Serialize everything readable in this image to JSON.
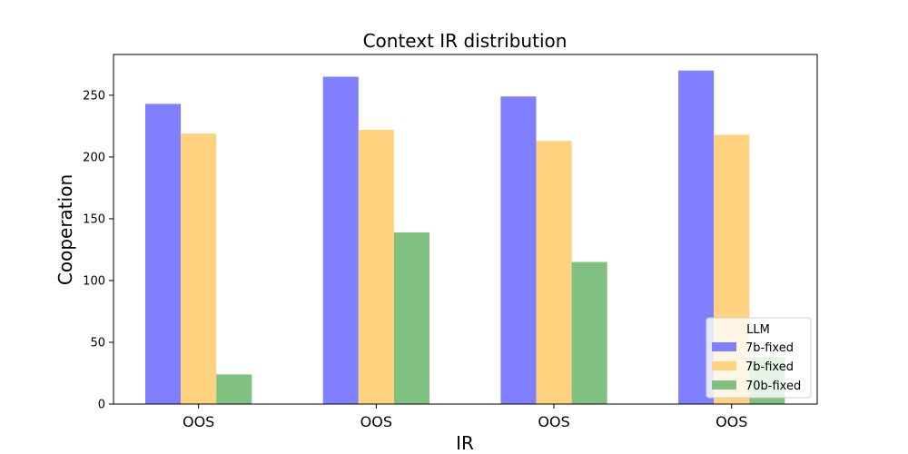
{
  "chart_data": {
    "type": "bar",
    "title": "Context IR distribution",
    "xlabel": "IR",
    "ylabel": "Cooperation",
    "categories": [
      "OOS",
      "OOS",
      "OOS",
      "OOS"
    ],
    "ylim": [
      0,
      283
    ],
    "yticks": [
      0,
      50,
      100,
      150,
      200,
      250
    ],
    "grid": false,
    "legend": {
      "title": "LLM",
      "placement": "lower-right"
    },
    "series": [
      {
        "name": "7b-fixed",
        "color": "#8080ff",
        "values": [
          243,
          265,
          249,
          270
        ]
      },
      {
        "name": "7b-fixed",
        "color": "#ffd280",
        "values": [
          219,
          222,
          213,
          218
        ]
      },
      {
        "name": "70b-fixed",
        "color": "#80c080",
        "values": [
          24,
          139,
          115,
          38
        ]
      }
    ]
  }
}
